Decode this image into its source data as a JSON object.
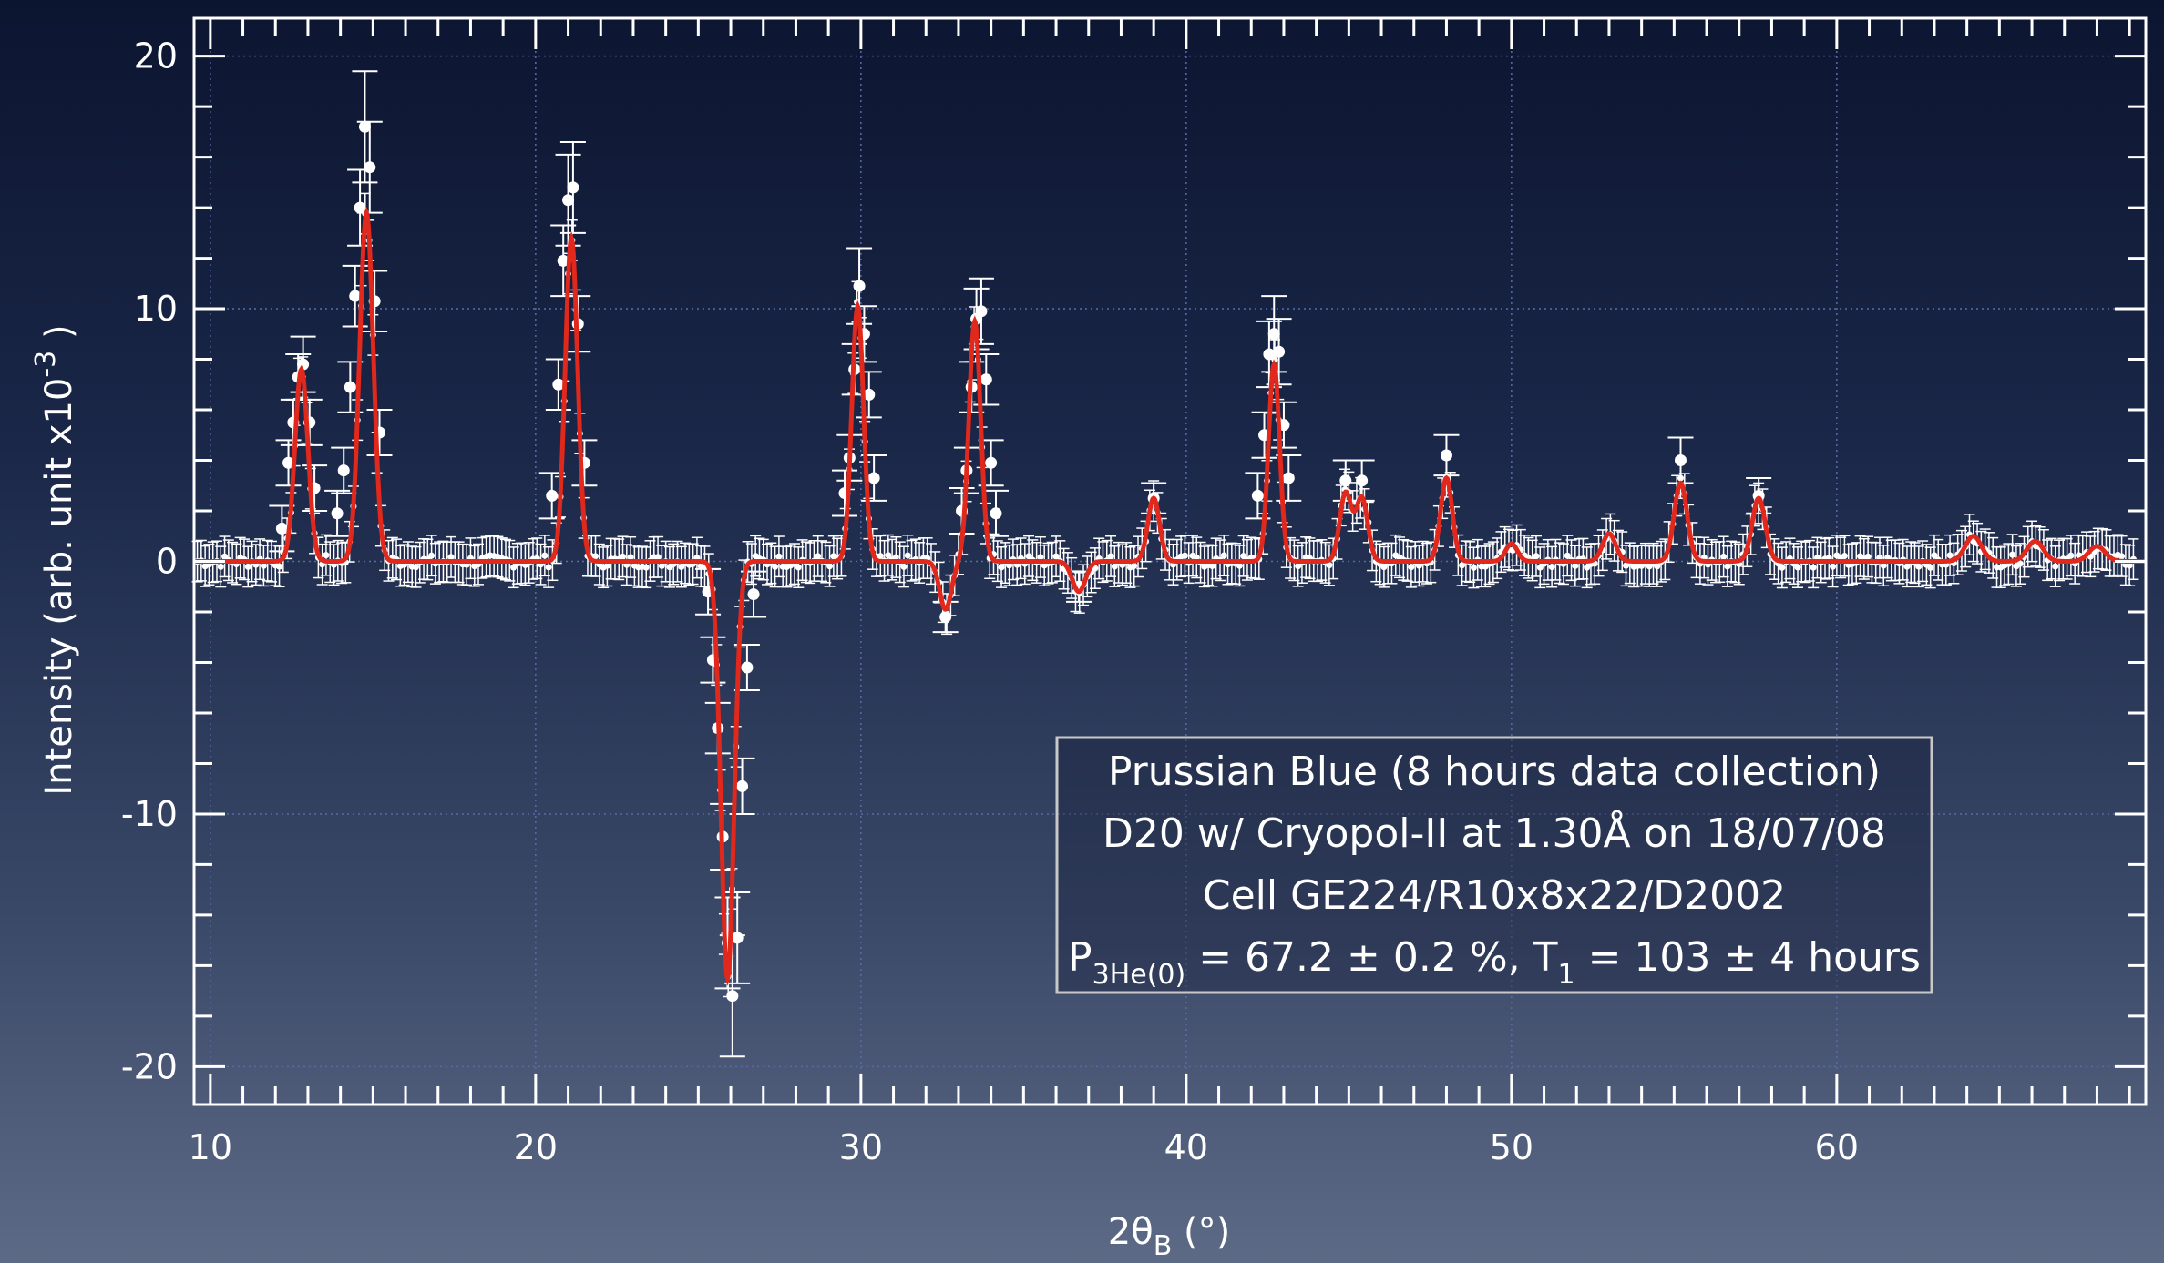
{
  "chart_data": {
    "type": "scatter",
    "xlabel_main": "2θ",
    "xlabel_sub": "B",
    "xlabel_unit": " (°)",
    "ylabel_main": "Intensity (arb. unit x10",
    "ylabel_sup": "-3",
    "ylabel_end": ")",
    "xlim": [
      9.5,
      69.5
    ],
    "ylim": [
      -21.5,
      21.5
    ],
    "xticks": [
      10,
      20,
      30,
      40,
      50,
      60
    ],
    "yticks": [
      -20,
      -10,
      0,
      10,
      20
    ],
    "grid": true,
    "colors": {
      "fit": "#e0281c",
      "data": "#ffffff",
      "grid": "#5a6aa8",
      "frame": "#ffffff"
    },
    "fit_params": {
      "peaks": [
        {
          "center": 12.8,
          "amplitude": 7.6,
          "sigma": 0.2
        },
        {
          "center": 14.8,
          "amplitude": 13.8,
          "sigma": 0.21
        },
        {
          "center": 21.1,
          "amplitude": 12.8,
          "sigma": 0.19
        },
        {
          "center": 25.9,
          "amplitude": -16.5,
          "sigma": 0.2
        },
        {
          "center": 29.9,
          "amplitude": 10.1,
          "sigma": 0.18
        },
        {
          "center": 32.6,
          "amplitude": -1.9,
          "sigma": 0.18
        },
        {
          "center": 33.5,
          "amplitude": 9.5,
          "sigma": 0.18
        },
        {
          "center": 36.7,
          "amplitude": -1.2,
          "sigma": 0.2
        },
        {
          "center": 39.0,
          "amplitude": 2.5,
          "sigma": 0.18
        },
        {
          "center": 42.7,
          "amplitude": 7.8,
          "sigma": 0.17
        },
        {
          "center": 44.9,
          "amplitude": 2.7,
          "sigma": 0.18
        },
        {
          "center": 45.4,
          "amplitude": 2.5,
          "sigma": 0.18
        },
        {
          "center": 48.0,
          "amplitude": 3.3,
          "sigma": 0.18
        },
        {
          "center": 50.0,
          "amplitude": 0.7,
          "sigma": 0.18
        },
        {
          "center": 53.0,
          "amplitude": 1.1,
          "sigma": 0.2
        },
        {
          "center": 55.2,
          "amplitude": 3.1,
          "sigma": 0.2
        },
        {
          "center": 57.6,
          "amplitude": 2.5,
          "sigma": 0.2
        },
        {
          "center": 64.2,
          "amplitude": 1.0,
          "sigma": 0.25
        },
        {
          "center": 66.1,
          "amplitude": 0.8,
          "sigma": 0.25
        },
        {
          "center": 68.0,
          "amplitude": 0.6,
          "sigma": 0.25
        }
      ]
    },
    "series": [
      {
        "points": [
          {
            "x": 12.2,
            "y": 1.3,
            "err": 0.9
          },
          {
            "x": 12.4,
            "y": 3.9,
            "err": 0.9
          },
          {
            "x": 12.55,
            "y": 5.5,
            "err": 0.9
          },
          {
            "x": 12.7,
            "y": 7.3,
            "err": 0.9
          },
          {
            "x": 12.85,
            "y": 7.8,
            "err": 1.1
          },
          {
            "x": 13.05,
            "y": 5.5,
            "err": 0.9
          },
          {
            "x": 13.2,
            "y": 2.9,
            "err": 0.9
          },
          {
            "x": 13.9,
            "y": 1.9,
            "err": 0.9
          },
          {
            "x": 14.1,
            "y": 3.6,
            "err": 0.9
          },
          {
            "x": 14.3,
            "y": 6.9,
            "err": 1.0
          },
          {
            "x": 14.45,
            "y": 10.5,
            "err": 1.2
          },
          {
            "x": 14.6,
            "y": 14.0,
            "err": 1.5
          },
          {
            "x": 14.75,
            "y": 17.2,
            "err": 2.2
          },
          {
            "x": 14.9,
            "y": 15.6,
            "err": 1.8
          },
          {
            "x": 15.05,
            "y": 10.3,
            "err": 1.2
          },
          {
            "x": 15.2,
            "y": 5.1,
            "err": 0.9
          },
          {
            "x": 20.5,
            "y": 2.6,
            "err": 0.9
          },
          {
            "x": 20.7,
            "y": 7.0,
            "err": 1.0
          },
          {
            "x": 20.85,
            "y": 11.9,
            "err": 1.4
          },
          {
            "x": 21.0,
            "y": 14.3,
            "err": 1.8
          },
          {
            "x": 21.15,
            "y": 14.8,
            "err": 1.8
          },
          {
            "x": 21.3,
            "y": 9.4,
            "err": 1.1
          },
          {
            "x": 21.5,
            "y": 3.9,
            "err": 0.9
          },
          {
            "x": 25.3,
            "y": -1.2,
            "err": 0.9
          },
          {
            "x": 25.45,
            "y": -3.9,
            "err": 0.9
          },
          {
            "x": 25.6,
            "y": -6.6,
            "err": 1.0
          },
          {
            "x": 25.75,
            "y": -10.9,
            "err": 1.3
          },
          {
            "x": 25.9,
            "y": -15.1,
            "err": 1.8
          },
          {
            "x": 26.05,
            "y": -17.2,
            "err": 2.4
          },
          {
            "x": 26.2,
            "y": -14.9,
            "err": 1.8
          },
          {
            "x": 26.35,
            "y": -8.9,
            "err": 1.1
          },
          {
            "x": 26.5,
            "y": -4.2,
            "err": 0.9
          },
          {
            "x": 26.7,
            "y": -1.3,
            "err": 0.9
          },
          {
            "x": 29.5,
            "y": 2.7,
            "err": 0.9
          },
          {
            "x": 29.65,
            "y": 4.1,
            "err": 0.9
          },
          {
            "x": 29.8,
            "y": 7.6,
            "err": 1.0
          },
          {
            "x": 29.95,
            "y": 10.9,
            "err": 1.5
          },
          {
            "x": 30.1,
            "y": 9.0,
            "err": 1.1
          },
          {
            "x": 30.25,
            "y": 6.6,
            "err": 0.9
          },
          {
            "x": 30.4,
            "y": 3.3,
            "err": 0.9
          },
          {
            "x": 32.6,
            "y": -2.2,
            "err": 0.6
          },
          {
            "x": 33.1,
            "y": 2.0,
            "err": 0.9
          },
          {
            "x": 33.25,
            "y": 3.6,
            "err": 0.9
          },
          {
            "x": 33.4,
            "y": 6.9,
            "err": 1.0
          },
          {
            "x": 33.55,
            "y": 9.6,
            "err": 1.2
          },
          {
            "x": 33.7,
            "y": 9.9,
            "err": 1.3
          },
          {
            "x": 33.85,
            "y": 7.2,
            "err": 1.0
          },
          {
            "x": 34.0,
            "y": 3.9,
            "err": 0.9
          },
          {
            "x": 34.15,
            "y": 1.9,
            "err": 0.9
          },
          {
            "x": 36.7,
            "y": -1.0,
            "err": 0.6
          },
          {
            "x": 39.0,
            "y": 2.5,
            "err": 0.6
          },
          {
            "x": 42.2,
            "y": 2.6,
            "err": 0.9
          },
          {
            "x": 42.4,
            "y": 5.0,
            "err": 0.9
          },
          {
            "x": 42.55,
            "y": 8.2,
            "err": 1.3
          },
          {
            "x": 42.7,
            "y": 9.0,
            "err": 1.5
          },
          {
            "x": 42.85,
            "y": 8.3,
            "err": 1.3
          },
          {
            "x": 43.0,
            "y": 5.4,
            "err": 0.9
          },
          {
            "x": 43.15,
            "y": 3.3,
            "err": 0.9
          },
          {
            "x": 44.9,
            "y": 3.2,
            "err": 0.8
          },
          {
            "x": 45.4,
            "y": 3.2,
            "err": 0.8
          },
          {
            "x": 48.0,
            "y": 4.2,
            "err": 0.8
          },
          {
            "x": 55.2,
            "y": 4.0,
            "err": 0.9
          },
          {
            "x": 57.6,
            "y": 2.6,
            "err": 0.7
          }
        ]
      }
    ],
    "background": {
      "xstart": 9.6,
      "xend": 69.2,
      "step": 0.12,
      "err": 0.8
    }
  },
  "annotation": {
    "lines": [
      "Prussian Blue (8 hours data collection)",
      "D20 w/ Cryopol-II at 1.30Å on 18/07/08",
      "Cell GE224/R10x8x22/D2002"
    ],
    "line4": {
      "p": "P",
      "p_sub": "3He(0)",
      "mid": " = 67.2 ± 0.2 %, T",
      "t_sub": "1",
      "end": " = 103 ± 4 hours"
    }
  }
}
